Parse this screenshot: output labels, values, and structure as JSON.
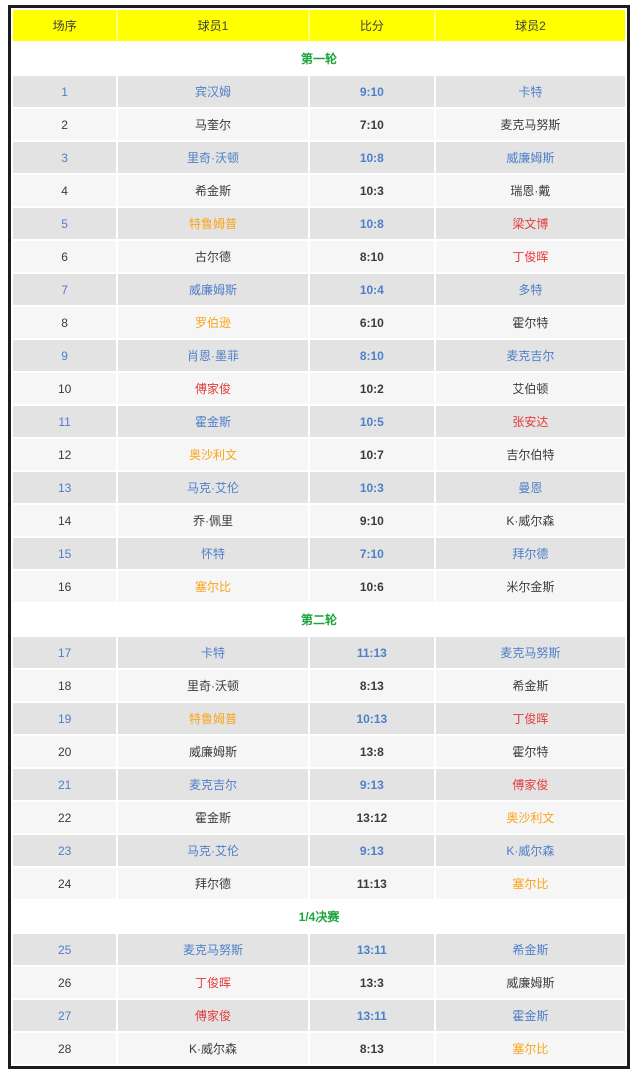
{
  "table": {
    "headers": [
      "场序",
      "球员1",
      "比分",
      "球员2"
    ],
    "style": {
      "header_bg": "#ffff00",
      "header_text": "#404040",
      "section_green": "#1ca53c",
      "blue": "#4e7fc9",
      "black": "#3b3b3b",
      "orange": "#faa41a",
      "red": "#e43d3d",
      "row_gray": "#e3e3e3",
      "row_light": "#f6f6f6",
      "outer_border": "#1c1c1c"
    },
    "sections": [
      {
        "title": "第一轮",
        "rows": [
          {
            "no": "1",
            "p1": "宾汉姆",
            "score": "9:10",
            "p2": "卡特",
            "colors": [
              "blue",
              "blue",
              "blue",
              "blue"
            ],
            "bg": "gray"
          },
          {
            "no": "2",
            "p1": "马奎尔",
            "score": "7:10",
            "p2": "麦克马努斯",
            "colors": [
              "black",
              "black",
              "black",
              "black"
            ],
            "bg": "light"
          },
          {
            "no": "3",
            "p1": "里奇·沃顿",
            "score": "10:8",
            "p2": "威廉姆斯",
            "colors": [
              "blue",
              "blue",
              "blue",
              "blue"
            ],
            "bg": "gray"
          },
          {
            "no": "4",
            "p1": "希金斯",
            "score": "10:3",
            "p2": "瑞恩·戴",
            "colors": [
              "black",
              "black",
              "black",
              "black"
            ],
            "bg": "light"
          },
          {
            "no": "5",
            "p1": "特鲁姆普",
            "score": "10:8",
            "p2": "梁文博",
            "colors": [
              "blue",
              "orange",
              "blue",
              "red"
            ],
            "bg": "gray"
          },
          {
            "no": "6",
            "p1": "古尔德",
            "score": "8:10",
            "p2": "丁俊晖",
            "colors": [
              "black",
              "black",
              "black",
              "red"
            ],
            "bg": "light"
          },
          {
            "no": "7",
            "p1": "威廉姆斯",
            "score": "10:4",
            "p2": "多特",
            "colors": [
              "blue",
              "blue",
              "blue",
              "blue"
            ],
            "bg": "gray"
          },
          {
            "no": "8",
            "p1": "罗伯逊",
            "score": "6:10",
            "p2": "霍尔特",
            "colors": [
              "black",
              "orange",
              "black",
              "black"
            ],
            "bg": "light"
          },
          {
            "no": "9",
            "p1": "肖恩·墨菲",
            "score": "8:10",
            "p2": "麦克吉尔",
            "colors": [
              "blue",
              "blue",
              "blue",
              "blue"
            ],
            "bg": "gray"
          },
          {
            "no": "10",
            "p1": "傅家俊",
            "score": "10:2",
            "p2": "艾伯顿",
            "colors": [
              "black",
              "red",
              "black",
              "black"
            ],
            "bg": "light"
          },
          {
            "no": "11",
            "p1": "霍金斯",
            "score": "10:5",
            "p2": "张安达",
            "colors": [
              "blue",
              "blue",
              "blue",
              "red"
            ],
            "bg": "gray"
          },
          {
            "no": "12",
            "p1": "奥沙利文",
            "score": "10:7",
            "p2": "吉尔伯特",
            "colors": [
              "black",
              "orange",
              "black",
              "black"
            ],
            "bg": "light"
          },
          {
            "no": "13",
            "p1": "马克·艾伦",
            "score": "10:3",
            "p2": "曼恩",
            "colors": [
              "blue",
              "blue",
              "blue",
              "blue"
            ],
            "bg": "gray"
          },
          {
            "no": "14",
            "p1": "乔·佩里",
            "score": "9:10",
            "p2": "K·威尔森",
            "colors": [
              "black",
              "black",
              "black",
              "black"
            ],
            "bg": "light"
          },
          {
            "no": "15",
            "p1": "怀特",
            "score": "7:10",
            "p2": "拜尔德",
            "colors": [
              "blue",
              "blue",
              "blue",
              "blue"
            ],
            "bg": "gray"
          },
          {
            "no": "16",
            "p1": "塞尔比",
            "score": "10:6",
            "p2": "米尔金斯",
            "colors": [
              "black",
              "orange",
              "black",
              "black"
            ],
            "bg": "light"
          }
        ]
      },
      {
        "title": "第二轮",
        "rows": [
          {
            "no": "17",
            "p1": "卡特",
            "score": "11:13",
            "p2": "麦克马努斯",
            "colors": [
              "blue",
              "blue",
              "blue",
              "blue"
            ],
            "bg": "gray"
          },
          {
            "no": "18",
            "p1": "里奇·沃顿",
            "score": "8:13",
            "p2": "希金斯",
            "colors": [
              "black",
              "black",
              "black",
              "black"
            ],
            "bg": "light"
          },
          {
            "no": "19",
            "p1": "特鲁姆普",
            "score": "10:13",
            "p2": "丁俊晖",
            "colors": [
              "blue",
              "orange",
              "blue",
              "red"
            ],
            "bg": "gray"
          },
          {
            "no": "20",
            "p1": "威廉姆斯",
            "score": "13:8",
            "p2": "霍尔特",
            "colors": [
              "black",
              "black",
              "black",
              "black"
            ],
            "bg": "light"
          },
          {
            "no": "21",
            "p1": "麦克吉尔",
            "score": "9:13",
            "p2": "傅家俊",
            "colors": [
              "blue",
              "blue",
              "blue",
              "red"
            ],
            "bg": "gray"
          },
          {
            "no": "22",
            "p1": "霍金斯",
            "score": "13:12",
            "p2": "奥沙利文",
            "colors": [
              "black",
              "black",
              "black",
              "orange"
            ],
            "bg": "light"
          },
          {
            "no": "23",
            "p1": "马克·艾伦",
            "score": "9:13",
            "p2": "K·威尔森",
            "colors": [
              "blue",
              "blue",
              "blue",
              "blue"
            ],
            "bg": "gray"
          },
          {
            "no": "24",
            "p1": "拜尔德",
            "score": "11:13",
            "p2": "塞尔比",
            "colors": [
              "black",
              "black",
              "black",
              "orange"
            ],
            "bg": "light"
          }
        ]
      },
      {
        "title": "1/4决赛",
        "rows": [
          {
            "no": "25",
            "p1": "麦克马努斯",
            "score": "13:11",
            "p2": "希金斯",
            "colors": [
              "blue",
              "blue",
              "blue",
              "blue"
            ],
            "bg": "gray"
          },
          {
            "no": "26",
            "p1": "丁俊晖",
            "score": "13:3",
            "p2": "威廉姆斯",
            "colors": [
              "black",
              "red",
              "black",
              "black"
            ],
            "bg": "light"
          },
          {
            "no": "27",
            "p1": "傅家俊",
            "score": "13:11",
            "p2": "霍金斯",
            "colors": [
              "blue",
              "red",
              "blue",
              "blue"
            ],
            "bg": "gray"
          },
          {
            "no": "28",
            "p1": "K·威尔森",
            "score": "8:13",
            "p2": "塞尔比",
            "colors": [
              "black",
              "black",
              "black",
              "orange"
            ],
            "bg": "light"
          }
        ]
      }
    ]
  }
}
